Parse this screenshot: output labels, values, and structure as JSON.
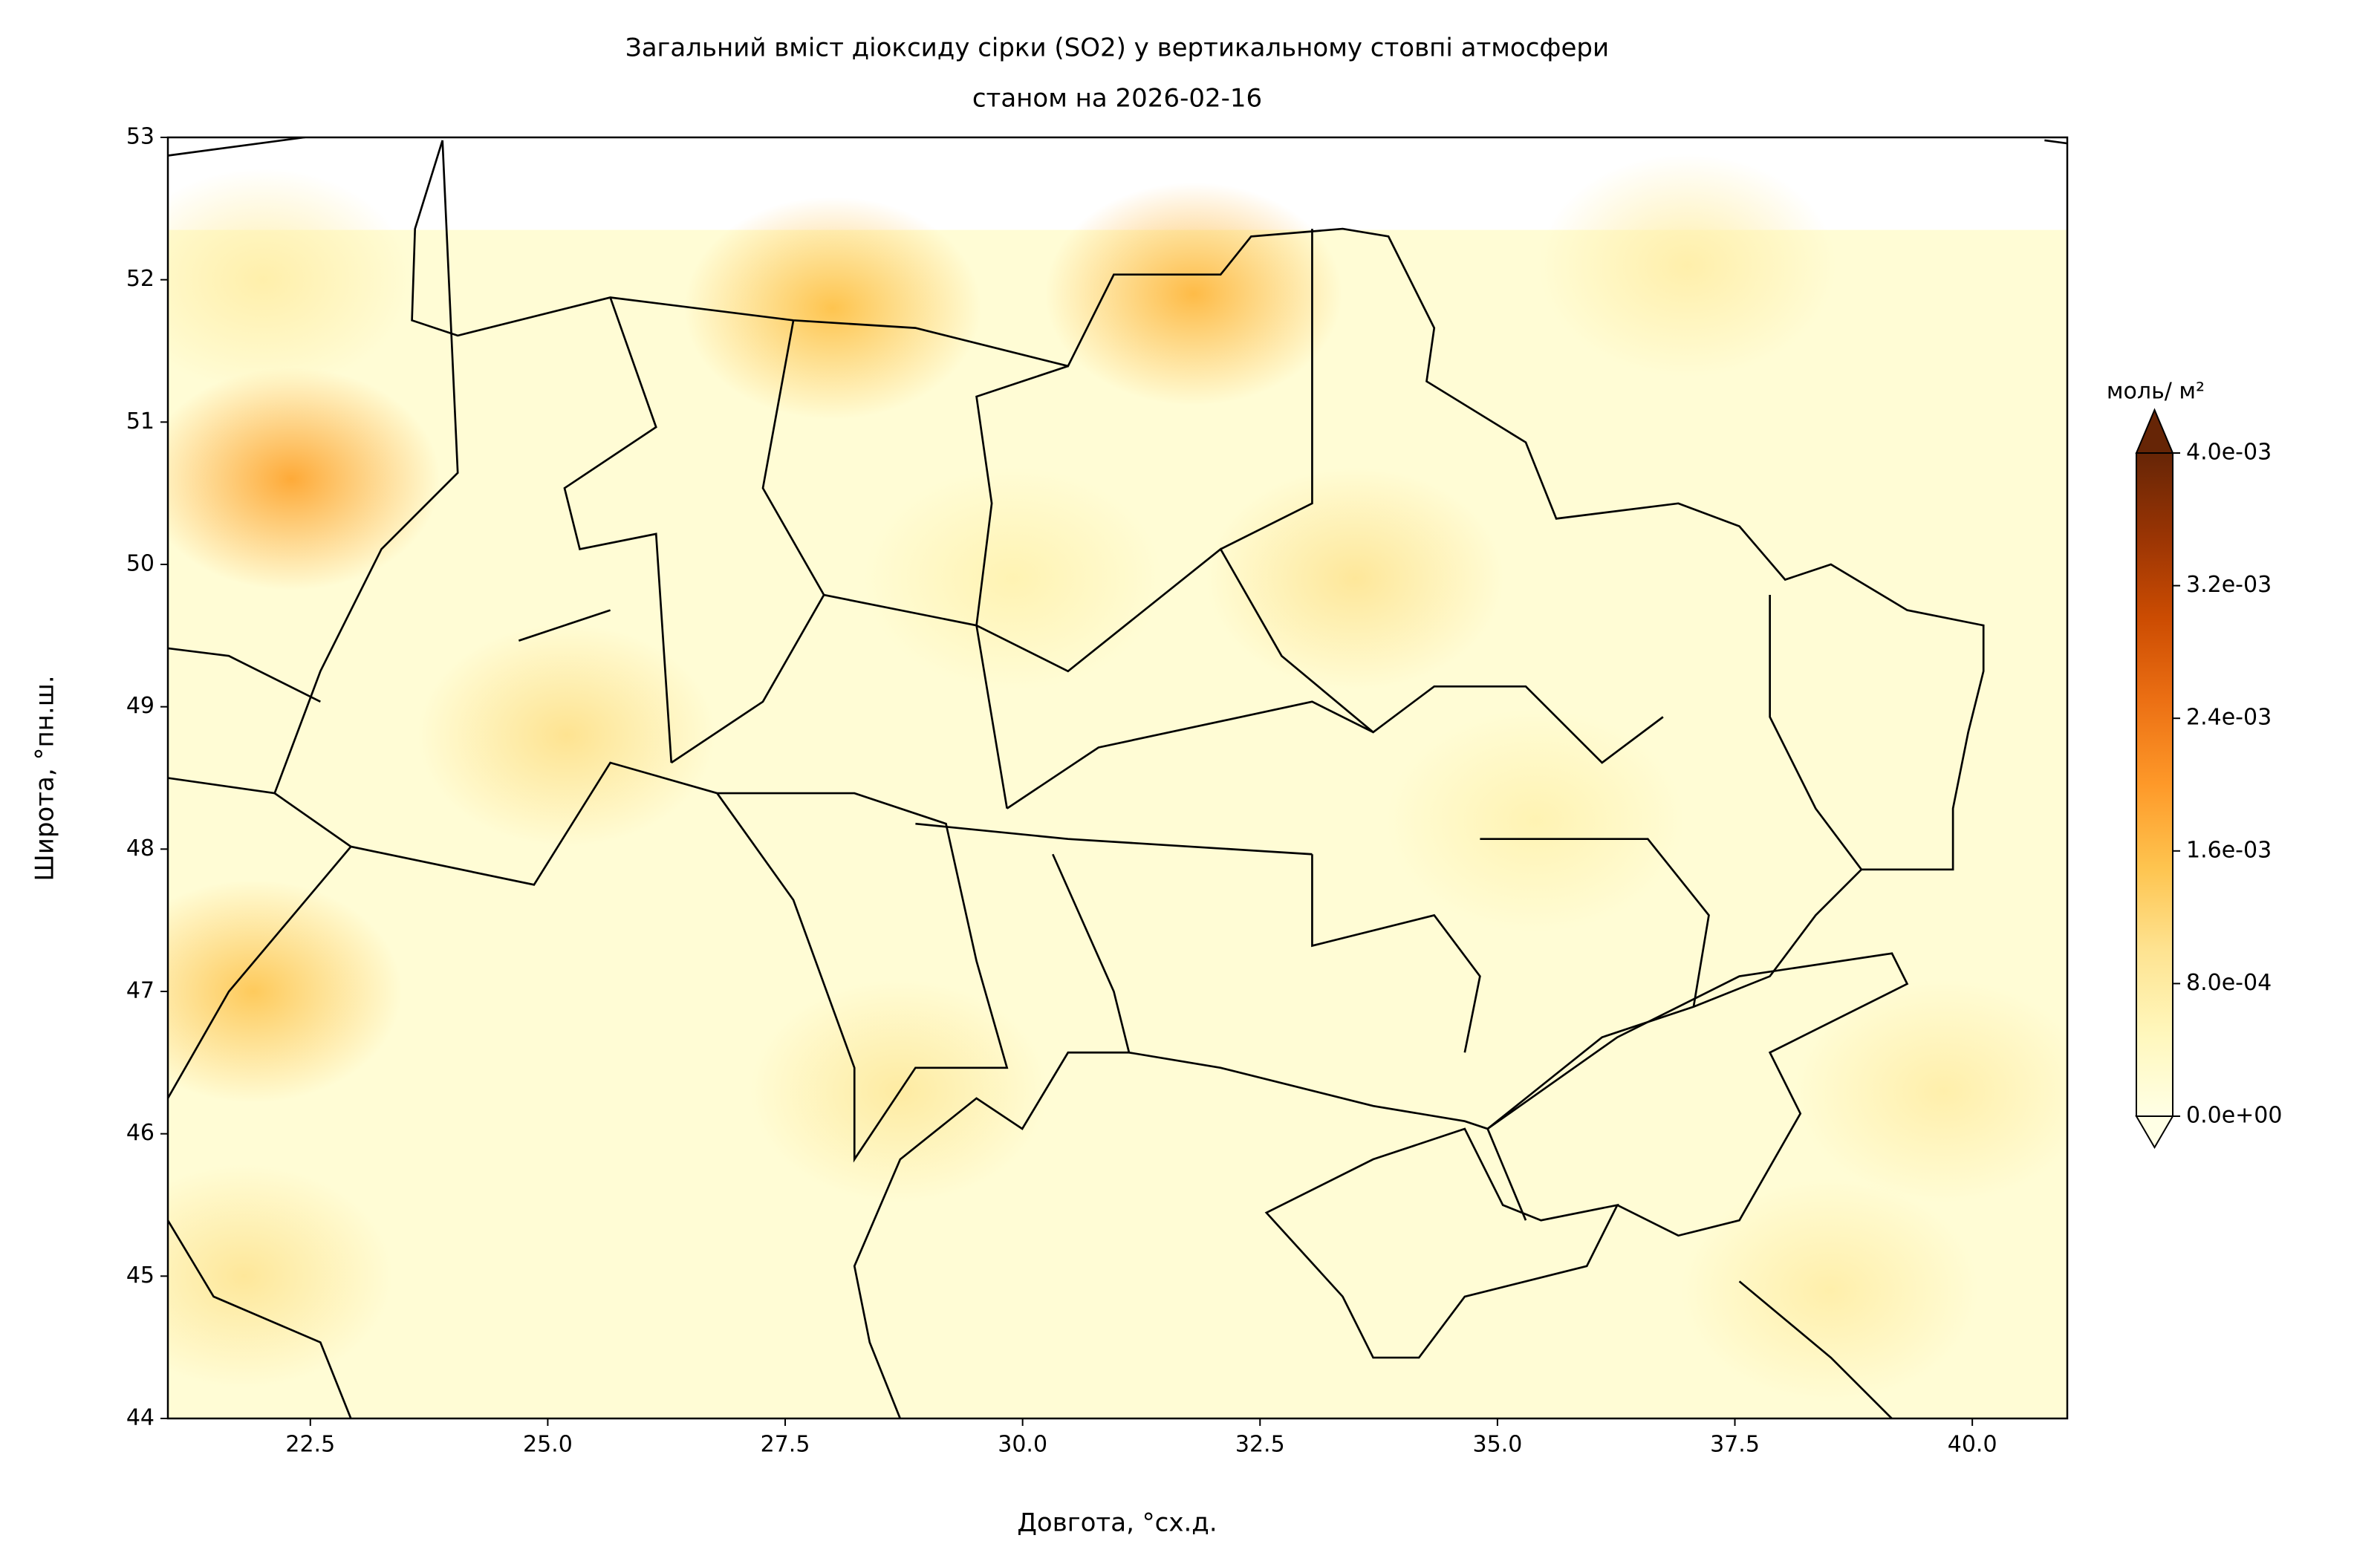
{
  "chart_data": {
    "type": "map",
    "title": [
      "Загальний вміст діоксиду сірки (SO2) у вертикальному стовпі атмосфери",
      "станом на 2026-02-16"
    ],
    "xlabel": "Довгота, °сх.д.",
    "ylabel": "Широта, °пн.ш.",
    "xlim": [
      21,
      41
    ],
    "ylim": [
      44,
      53
    ],
    "xticks": [
      22.5,
      {
        "value": 25,
        "label": "25.0"
      },
      27.5,
      {
        "value": 30,
        "label": "30.0"
      },
      32.5,
      {
        "value": 35,
        "label": "35.0"
      },
      37.5,
      {
        "value": 40,
        "label": "40.0"
      }
    ],
    "yticks": [
      44,
      45,
      46,
      47,
      48,
      49,
      50,
      51,
      52,
      53
    ],
    "colorbar": {
      "label": "моль/ м²",
      "clim": [
        0,
        0.004
      ],
      "ticks": [
        {
          "value": 0,
          "label": "0.0e+00"
        },
        {
          "value": 0.0008,
          "label": "8.0e-04"
        },
        {
          "value": 0.0016,
          "label": "1.6e-03"
        },
        {
          "value": 0.0024,
          "label": "2.4e-03"
        },
        {
          "value": 0.0032,
          "label": "3.2e-03"
        },
        {
          "value": 0.004,
          "label": "4.0e-03"
        }
      ],
      "colormap": [
        "#ffffe5",
        "#fff7bc",
        "#fee391",
        "#fec44f",
        "#fe9929",
        "#ec7014",
        "#cc4c02",
        "#993404",
        "#662506"
      ]
    },
    "field": {
      "ylim": [
        44,
        52.35
      ],
      "background": 0.0002,
      "x": [
        22.3,
        21.9,
        31.8,
        28.0,
        33.5,
        25.2,
        21.8,
        28.7,
        37.0,
        38.5,
        39.7,
        29.9,
        22.0,
        35.4
      ],
      "y": [
        50.6,
        47.0,
        51.9,
        51.8,
        49.9,
        48.8,
        45.0,
        46.3,
        52.1,
        44.9,
        46.3,
        49.9,
        52.0,
        48.2
      ],
      "values": [
        0.0018,
        0.0014,
        0.0016,
        0.0015,
        0.0009,
        0.001,
        0.0009,
        0.0008,
        0.0007,
        0.0007,
        0.0007,
        0.0006,
        0.0007,
        0.0006
      ]
    }
  }
}
